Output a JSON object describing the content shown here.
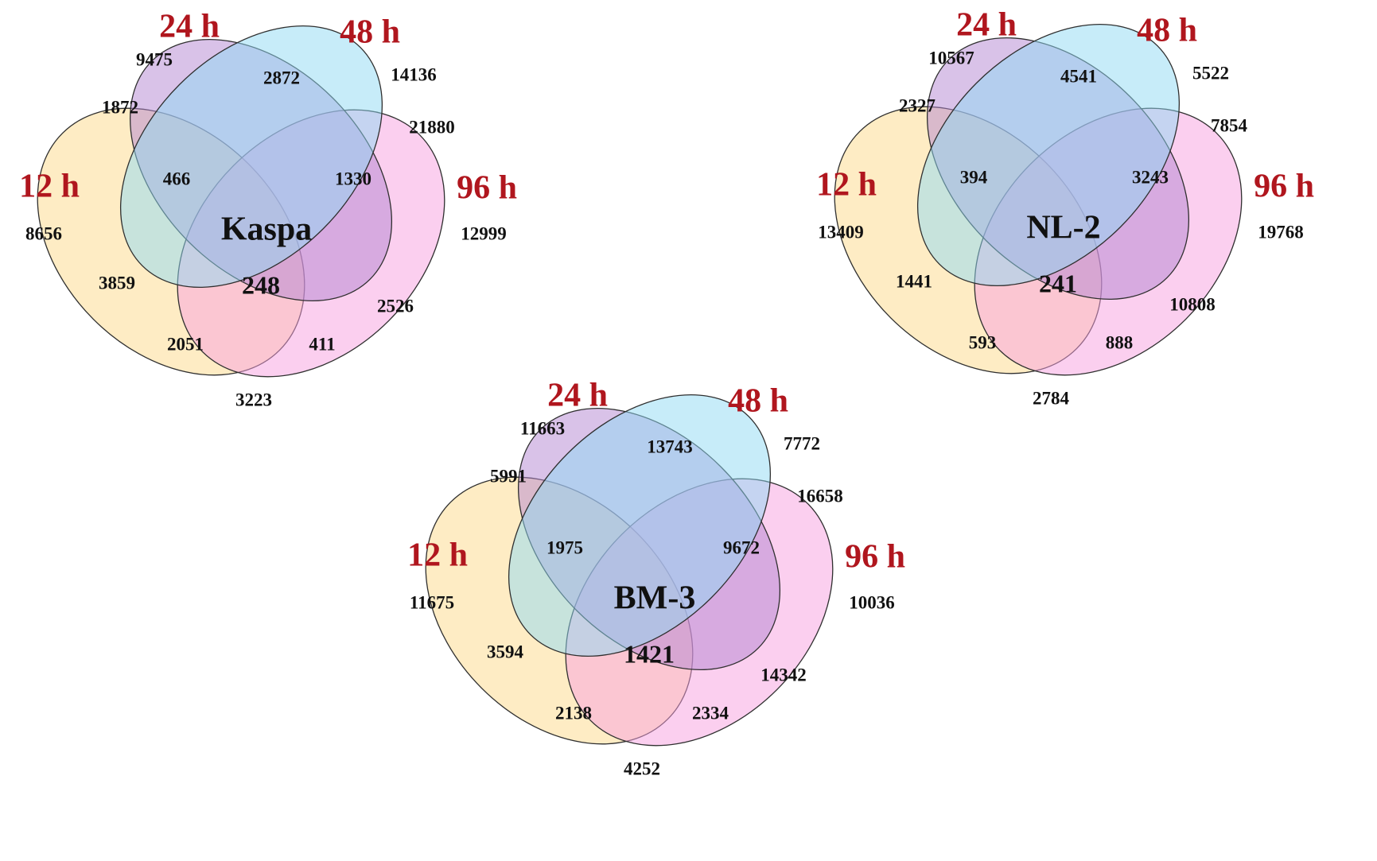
{
  "label_color": "#b0161e",
  "set_colors": {
    "12h": "#fdd98a",
    "24h": "#b486d1",
    "48h": "#8fd9f3",
    "96h": "#f8a0df"
  },
  "venns": [
    {
      "id": "kaspa",
      "title": "Kaspa",
      "labels": {
        "12h": "12 h",
        "24h": "24 h",
        "48h": "48 h",
        "96h": "96 h"
      },
      "regions": {
        "a": "8656",
        "b": "9475",
        "c": "14136",
        "d": "12999",
        "ab": "1872",
        "bc": "2872",
        "cd": "21880",
        "ac": "3859",
        "bd": "3223",
        "abc": "466",
        "bcd": "1330",
        "acd": "2051",
        "abd": "2526",
        "ad": "411",
        "abcd": "248"
      }
    },
    {
      "id": "nl2",
      "title": "NL-2",
      "labels": {
        "12h": "12 h",
        "24h": "24 h",
        "48h": "48 h",
        "96h": "96 h"
      },
      "regions": {
        "a": "13409",
        "b": "10567",
        "c": "5522",
        "d": "19768",
        "ab": "2327",
        "bc": "4541",
        "cd": "7854",
        "ac": "1441",
        "bd": "2784",
        "abc": "394",
        "bcd": "3243",
        "acd": "593",
        "abd": "10808",
        "ad": "888",
        "abcd": "241"
      }
    },
    {
      "id": "bm3",
      "title": "BM-3",
      "labels": {
        "12h": "12 h",
        "24h": "24 h",
        "48h": "48 h",
        "96h": "96 h"
      },
      "regions": {
        "a": "11675",
        "b": "11663",
        "c": "7772",
        "d": "10036",
        "ab": "5991",
        "bc": "13743",
        "cd": "16658",
        "ac": "3594",
        "bd": "4252",
        "abc": "1975",
        "bcd": "9672",
        "acd": "2138",
        "abd": "14342",
        "ad": "2334",
        "abcd": "1421"
      }
    }
  ]
}
